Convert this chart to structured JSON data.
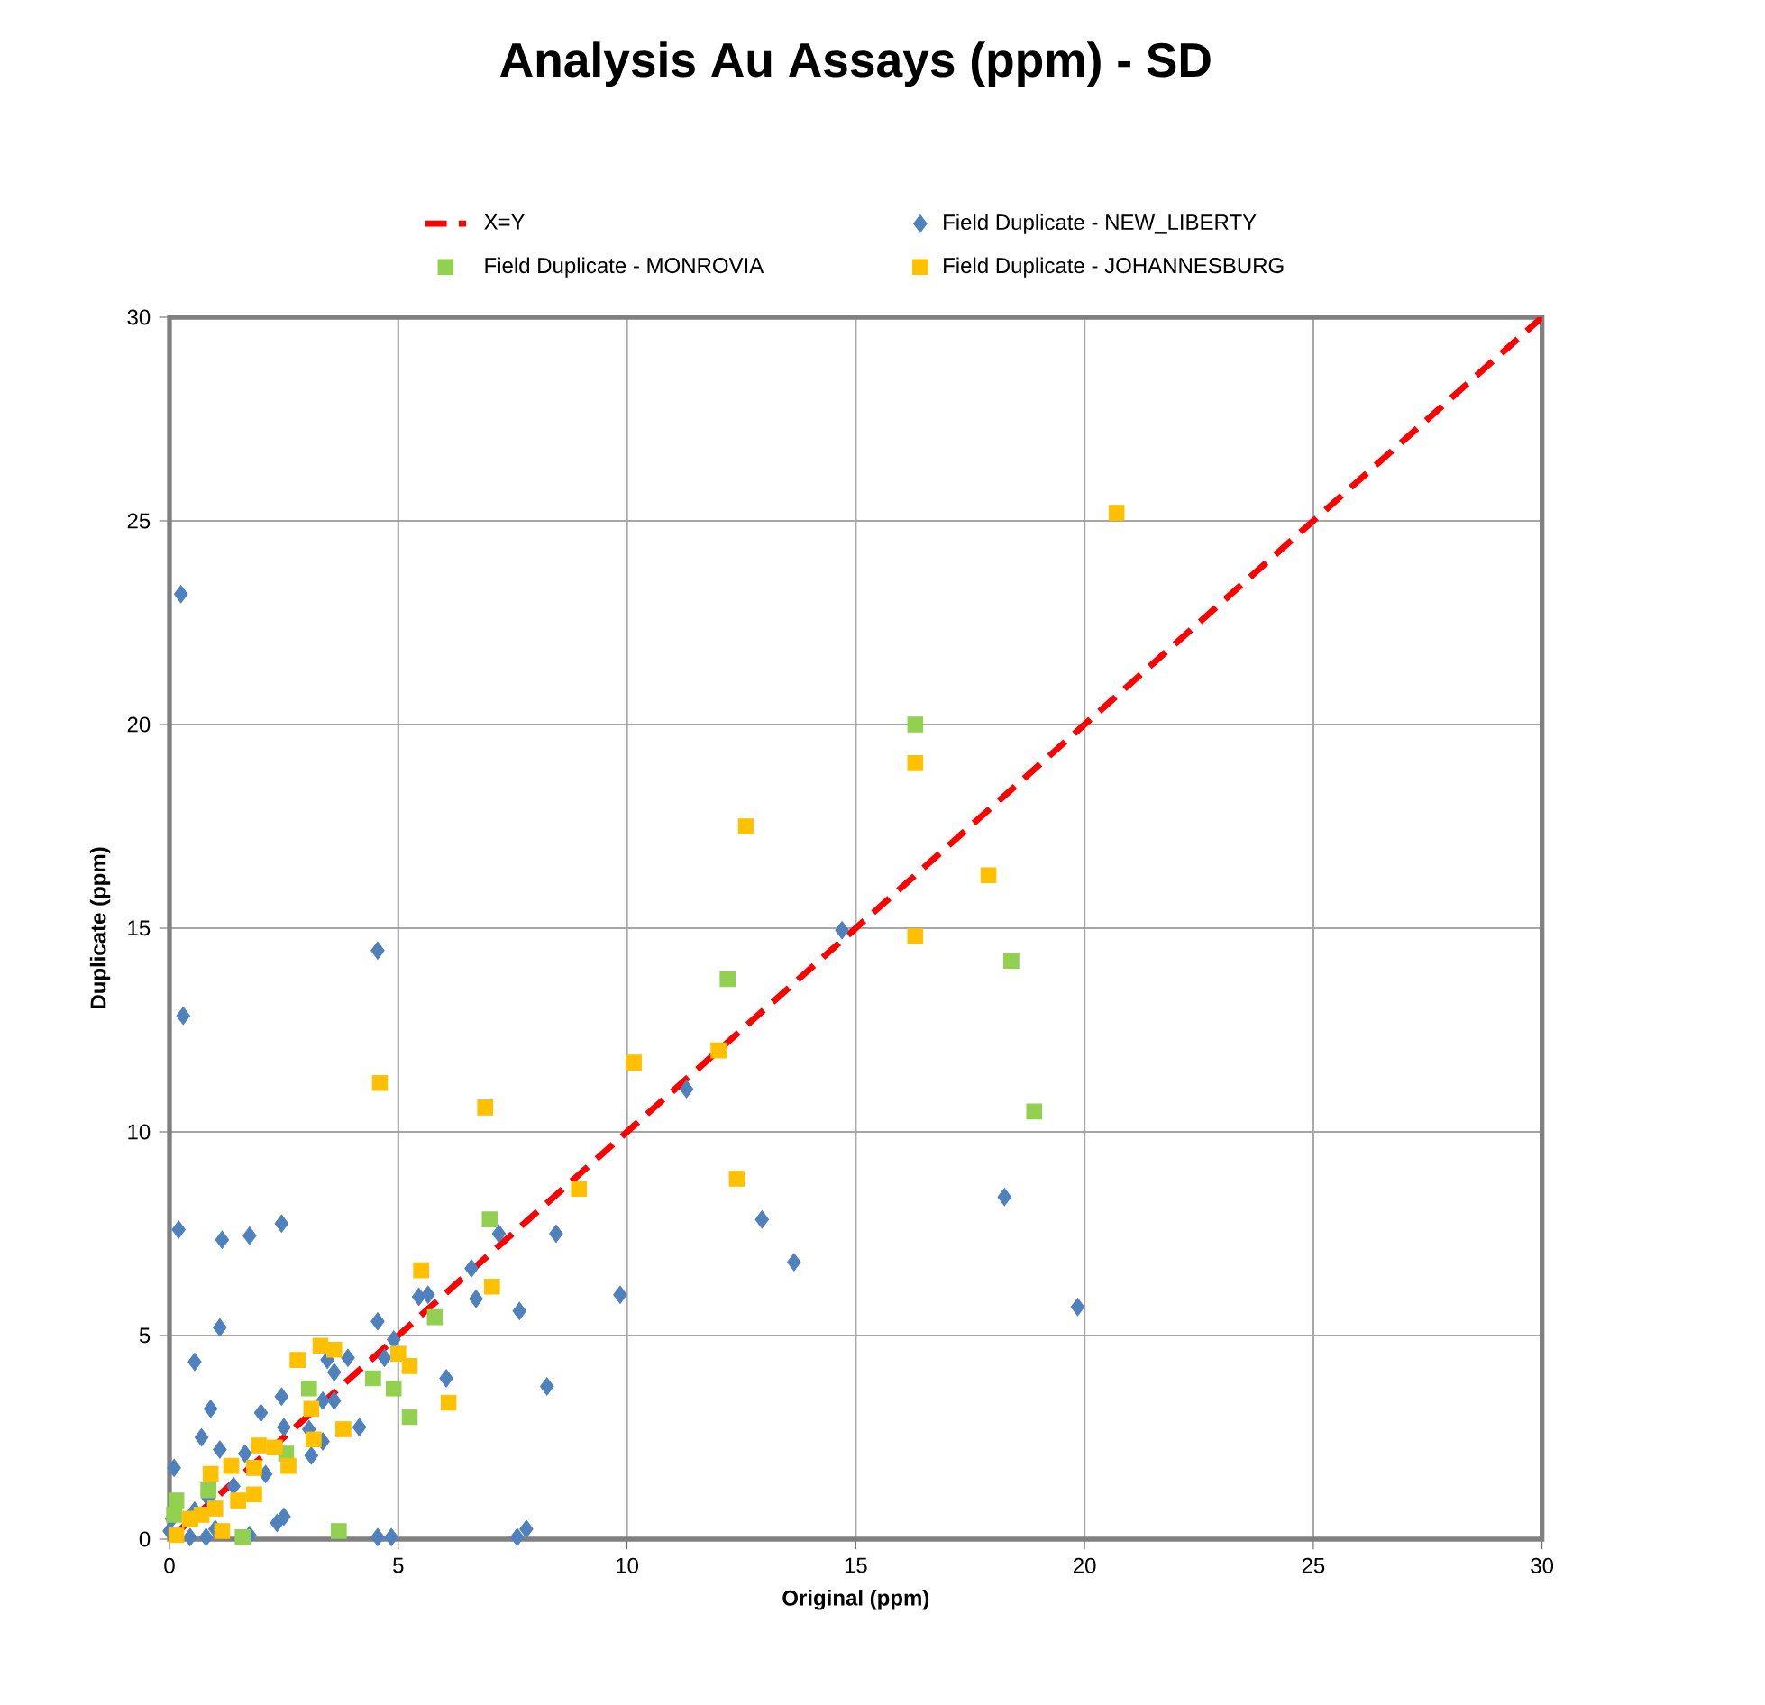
{
  "chart_data": {
    "type": "scatter",
    "title": "Analysis Au Assays (ppm) - SD",
    "xlabel": "Original (ppm)",
    "ylabel": "Duplicate (ppm)",
    "xlim": [
      0,
      30
    ],
    "ylim": [
      0,
      30
    ],
    "xticks": [
      0,
      5,
      10,
      15,
      20,
      25,
      30
    ],
    "yticks": [
      0,
      5,
      10,
      15,
      20,
      25,
      30
    ],
    "grid": true,
    "legend": "top",
    "series": [
      {
        "name": "X=Y",
        "type": "line",
        "line_style": "dashed",
        "color": "#ff0000",
        "x": [
          0,
          30
        ],
        "values": [
          0,
          30
        ]
      },
      {
        "name": "Field Duplicate - NEW_LIBERTY",
        "marker": "diamond",
        "color": "#4f81bd",
        "x": [
          0.25,
          0.3,
          4.55,
          14.7,
          11.3,
          12.95,
          13.65,
          18.25,
          19.85,
          0.2,
          1.15,
          1.75,
          2.45,
          1.1,
          0.55,
          0.9,
          2.0,
          2.45,
          0.7,
          1.1,
          2.5,
          3.05,
          3.6,
          3.35,
          4.15,
          3.1,
          3.35,
          2.1,
          0.1,
          2.35,
          2.5,
          4.55,
          4.9,
          4.7,
          3.6,
          3.45,
          3.9,
          6.05,
          6.6,
          6.7,
          7.2,
          5.45,
          5.65,
          4.55,
          4.85,
          1.65,
          0.0,
          0.45,
          0.8,
          1.75,
          7.6,
          7.8,
          8.25,
          8.45,
          7.65,
          9.85,
          0.55,
          0.85,
          1.4,
          0.05,
          1.0
        ],
        "values": [
          23.2,
          12.85,
          14.45,
          14.95,
          11.05,
          7.85,
          6.8,
          8.4,
          5.7,
          7.6,
          7.35,
          7.45,
          7.75,
          5.2,
          4.35,
          3.2,
          3.1,
          3.5,
          2.5,
          2.2,
          2.75,
          2.7,
          3.4,
          3.4,
          2.75,
          2.05,
          2.4,
          1.6,
          1.75,
          0.4,
          0.55,
          5.35,
          4.9,
          4.45,
          4.1,
          4.4,
          4.45,
          3.95,
          6.65,
          5.9,
          7.5,
          5.95,
          6.0,
          0.05,
          0.05,
          2.1,
          0.2,
          0.05,
          0.05,
          0.1,
          0.05,
          0.25,
          3.75,
          7.5,
          5.6,
          6.0,
          0.7,
          1.0,
          1.3,
          0.5,
          0.25
        ]
      },
      {
        "name": "Field Duplicate - MONROVIA",
        "marker": "square",
        "color": "#92d050",
        "x": [
          16.3,
          12.2,
          18.4,
          18.9,
          7.0,
          5.8,
          4.45,
          3.05,
          4.9,
          5.25,
          3.7,
          1.6,
          0.85,
          0.15,
          2.55,
          0.1
        ],
        "values": [
          20.0,
          13.75,
          14.2,
          10.5,
          7.85,
          5.45,
          3.95,
          3.7,
          3.7,
          3.0,
          0.2,
          0.05,
          1.2,
          0.95,
          2.1,
          0.6
        ]
      },
      {
        "name": "Field Duplicate - JOHANNESBURG",
        "marker": "square",
        "color": "#ffc000",
        "x": [
          20.7,
          16.3,
          12.6,
          17.9,
          16.3,
          10.15,
          4.6,
          6.9,
          12.0,
          12.4,
          8.95,
          5.5,
          7.05,
          6.1,
          5.25,
          5.0,
          3.8,
          3.3,
          3.6,
          3.1,
          3.15,
          2.8,
          1.95,
          2.3,
          2.6,
          0.9,
          1.35,
          1.85,
          1.85,
          1.5,
          1.15,
          0.45,
          0.15,
          0.7,
          1.0
        ],
        "values": [
          25.2,
          19.05,
          17.5,
          16.3,
          14.8,
          11.7,
          11.2,
          10.6,
          12.0,
          8.85,
          8.6,
          6.6,
          6.2,
          3.35,
          4.25,
          4.55,
          2.7,
          4.75,
          4.65,
          3.2,
          2.45,
          4.4,
          2.3,
          2.25,
          1.8,
          1.6,
          1.8,
          1.75,
          1.1,
          0.95,
          0.2,
          0.5,
          0.1,
          0.6,
          0.75
        ]
      }
    ]
  }
}
